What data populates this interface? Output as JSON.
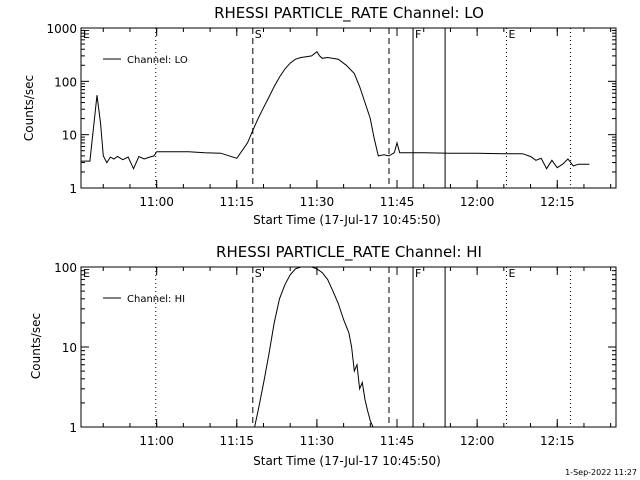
{
  "chart_data": [
    {
      "type": "line",
      "title": "RHESSI PARTICLE_RATE Channel: LO",
      "xlabel": "Start Time (17-Jul-17 10:45:50)",
      "ylabel": "Counts/sec",
      "yscale": "log",
      "ylim": [
        1,
        1000
      ],
      "xlim": [
        "10:45:50",
        "12:26:00"
      ],
      "x_ticks": [
        "11:00",
        "11:15",
        "11:30",
        "11:45",
        "12:00",
        "12:15"
      ],
      "y_ticks": [
        "1",
        "10",
        "100",
        "1000"
      ],
      "legend": "top-left",
      "grid": false,
      "series": [
        {
          "name": "Channel: LO",
          "x": [
            "10:45:50",
            "10:47:30",
            "10:48:50",
            "10:49:30",
            "10:50:00",
            "10:50:40",
            "10:51:20",
            "10:52:00",
            "10:52:40",
            "10:53:40",
            "10:54:40",
            "10:55:40",
            "10:56:40",
            "10:57:40",
            "10:58:40",
            "10:59:30",
            "11:00:00",
            "11:03:00",
            "11:06:00",
            "11:09:00",
            "11:12:00",
            "11:15:00",
            "11:17:00",
            "11:18:00",
            "11:19:00",
            "11:20:00",
            "11:21:00",
            "11:22:00",
            "11:23:00",
            "11:24:00",
            "11:25:00",
            "11:26:00",
            "11:27:00",
            "11:28:00",
            "11:29:00",
            "11:30:00",
            "11:30:30",
            "11:31:00",
            "11:32:00",
            "11:34:00",
            "11:35:30",
            "11:37:00",
            "11:38:00",
            "11:39:00",
            "11:40:00",
            "11:40:40",
            "11:41:30",
            "11:42:30",
            "11:43:30",
            "11:44:30",
            "11:45:00",
            "11:45:30",
            "11:46:30",
            "11:50:00",
            "11:55:00",
            "12:00:00",
            "12:05:00",
            "12:08:30",
            "12:10:00",
            "12:11:00",
            "12:12:00",
            "12:13:00",
            "12:14:00",
            "12:15:00",
            "12:16:00",
            "12:17:00",
            "12:18:00",
            "12:19:00",
            "12:21:00"
          ],
          "y": [
            3.2,
            3.2,
            55,
            16,
            4.0,
            3.0,
            3.8,
            3.5,
            3.9,
            3.4,
            3.8,
            2.3,
            3.9,
            3.5,
            3.8,
            4.0,
            4.8,
            4.8,
            4.8,
            4.6,
            4.5,
            3.6,
            7,
            12,
            20,
            32,
            50,
            80,
            120,
            170,
            220,
            260,
            280,
            290,
            300,
            360,
            300,
            270,
            280,
            260,
            200,
            140,
            80,
            40,
            20,
            9,
            4.0,
            4.2,
            4.0,
            4.6,
            7.0,
            4.6,
            4.6,
            4.6,
            4.5,
            4.5,
            4.4,
            4.4,
            3.9,
            3.3,
            3.6,
            2.3,
            3.3,
            2.4,
            2.8,
            3.5,
            2.6,
            2.8,
            2.8
          ]
        }
      ],
      "markers": [
        {
          "label": "E",
          "time": "10:45:50",
          "style": "dotted"
        },
        {
          "label": "",
          "time": "10:59:50",
          "style": "dotted"
        },
        {
          "label": "S",
          "time": "11:18:00",
          "style": "dashed"
        },
        {
          "label": "",
          "time": "11:43:30",
          "style": "dashed"
        },
        {
          "label": "F",
          "time": "11:48:00",
          "style": "solid"
        },
        {
          "label": "",
          "time": "11:54:00",
          "style": "solid"
        },
        {
          "label": "E",
          "time": "12:05:30",
          "style": "dotted"
        },
        {
          "label": "",
          "time": "12:17:30",
          "style": "dotted"
        }
      ]
    },
    {
      "type": "line",
      "title": "RHESSI PARTICLE_RATE Channel: HI",
      "xlabel": "Start Time (17-Jul-17 10:45:50)",
      "ylabel": "Counts/sec",
      "yscale": "log",
      "ylim": [
        1,
        100
      ],
      "xlim": [
        "10:45:50",
        "12:26:00"
      ],
      "x_ticks": [
        "11:00",
        "11:15",
        "11:30",
        "11:45",
        "12:00",
        "12:15"
      ],
      "y_ticks": [
        "1",
        "10",
        "100"
      ],
      "legend": "top-left",
      "grid": false,
      "series": [
        {
          "name": "Channel: HI",
          "x": [
            "11:18:20",
            "11:19:00",
            "11:20:00",
            "11:21:00",
            "11:22:00",
            "11:23:00",
            "11:24:00",
            "11:25:00",
            "11:26:00",
            "11:27:00",
            "11:28:00",
            "11:29:00",
            "11:30:00",
            "11:31:00",
            "11:32:00",
            "11:33:00",
            "11:34:00",
            "11:35:00",
            "11:36:00",
            "11:36:30",
            "11:37:00",
            "11:37:30",
            "11:38:00",
            "11:38:30",
            "11:39:00",
            "11:39:30",
            "11:40:00",
            "11:40:30"
          ],
          "y": [
            1.0,
            1.6,
            3.5,
            8,
            20,
            40,
            60,
            80,
            95,
            100,
            100,
            100,
            95,
            85,
            70,
            50,
            35,
            22,
            15,
            10,
            5,
            6,
            3,
            3.6,
            2.2,
            1.6,
            1.2,
            1.0
          ]
        }
      ],
      "markers": [
        {
          "label": "E",
          "time": "10:45:50",
          "style": "dotted"
        },
        {
          "label": "",
          "time": "10:59:50",
          "style": "dotted"
        },
        {
          "label": "S",
          "time": "11:18:00",
          "style": "dashed"
        },
        {
          "label": "",
          "time": "11:43:30",
          "style": "dashed"
        },
        {
          "label": "F",
          "time": "11:48:00",
          "style": "solid"
        },
        {
          "label": "",
          "time": "11:54:00",
          "style": "solid"
        },
        {
          "label": "E",
          "time": "12:05:30",
          "style": "dotted"
        },
        {
          "label": "",
          "time": "12:17:30",
          "style": "dotted"
        }
      ]
    }
  ],
  "footer": "1-Sep-2022 11:27"
}
